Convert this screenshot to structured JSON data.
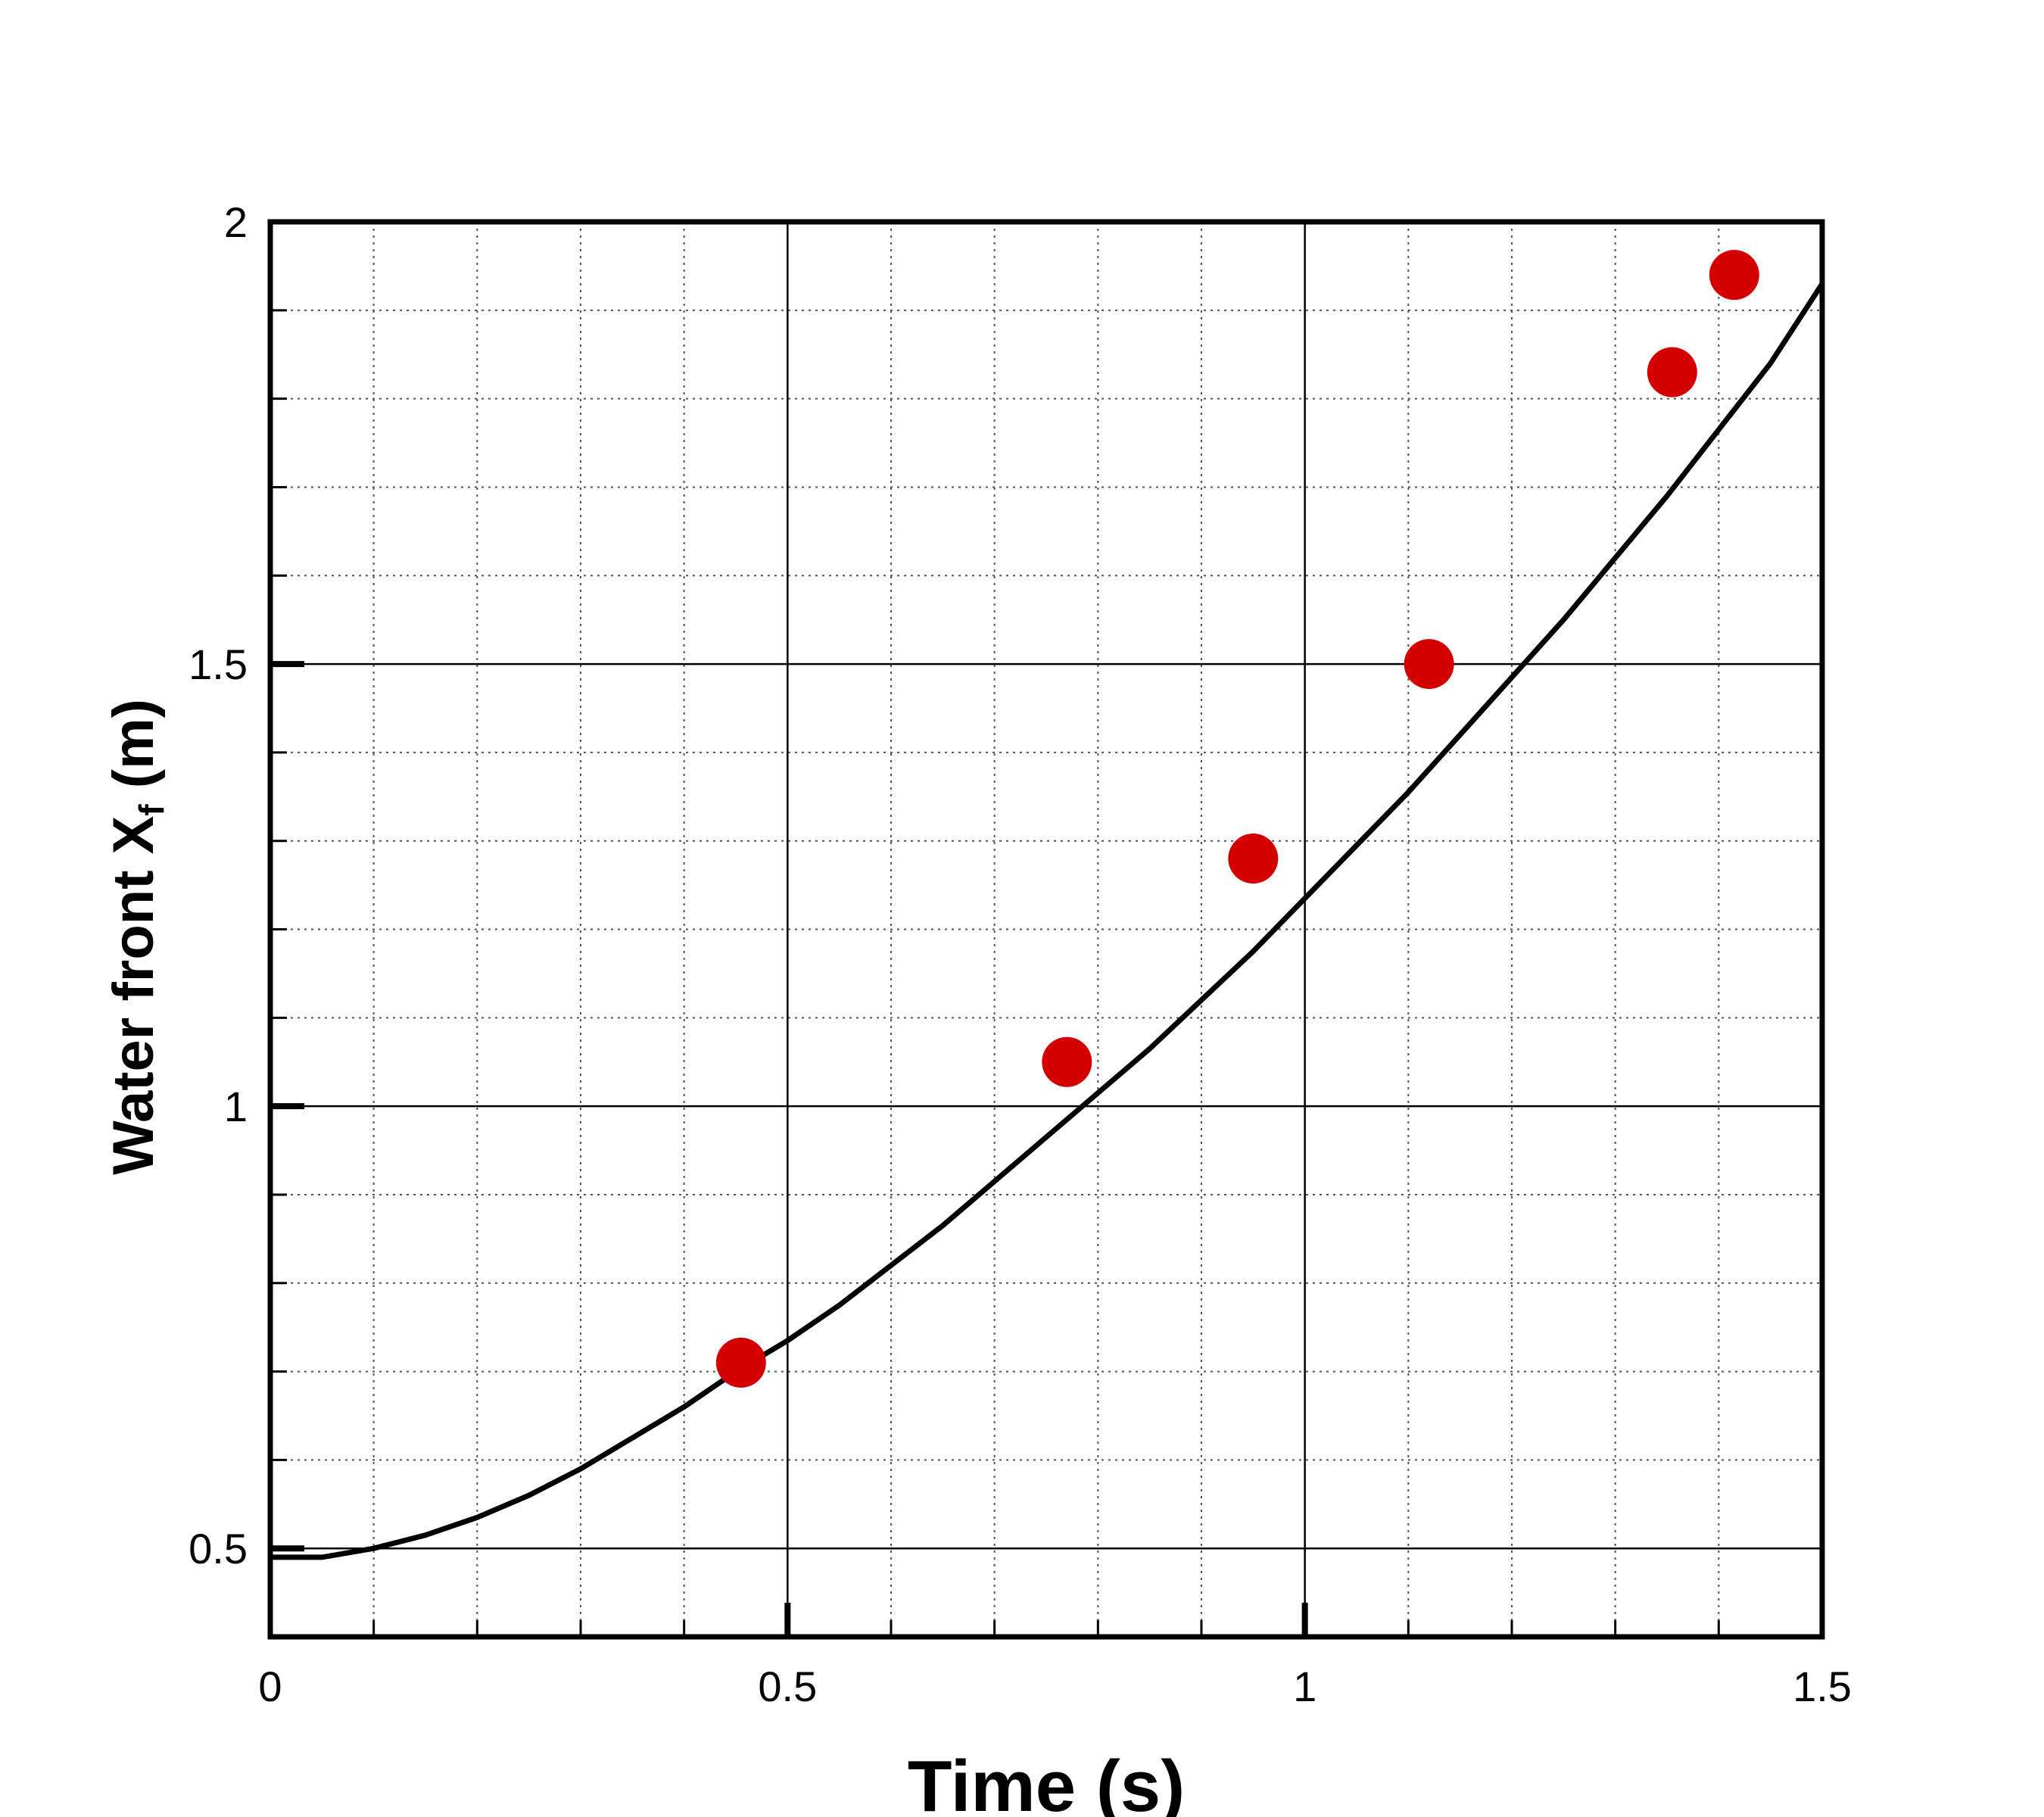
{
  "chart_data": {
    "type": "line",
    "title": "",
    "xlabel": "Time (s)",
    "ylabel": {
      "main": "Water front  X",
      "subscript": "f",
      "unit": " (m)"
    },
    "xlim": [
      0,
      1.5
    ],
    "ylim": [
      0.4,
      2.0
    ],
    "xticks": [
      {
        "value": 0,
        "label": "0"
      },
      {
        "value": 0.5,
        "label": "0.5"
      },
      {
        "value": 1,
        "label": "1"
      },
      {
        "value": 1.5,
        "label": "1.5"
      }
    ],
    "yticks": [
      {
        "value": 0.5,
        "label": "0.5"
      },
      {
        "value": 1,
        "label": "1"
      },
      {
        "value": 1.5,
        "label": "1.5"
      },
      {
        "value": 2,
        "label": "2"
      }
    ],
    "grid": true,
    "series": [
      {
        "kind": "line",
        "color": "#000000",
        "x": [
          0,
          0.05,
          0.1,
          0.15,
          0.2,
          0.25,
          0.3,
          0.35,
          0.4,
          0.45,
          0.5,
          0.55,
          0.6,
          0.65,
          0.7,
          0.75,
          0.8,
          0.85,
          0.9,
          0.95,
          1.0,
          1.05,
          1.1,
          1.15,
          1.2,
          1.25,
          1.3,
          1.35,
          1.4,
          1.45,
          1.5
        ],
        "y": [
          0.49,
          0.49,
          0.5,
          0.515,
          0.535,
          0.56,
          0.59,
          0.625,
          0.66,
          0.7,
          0.735,
          0.775,
          0.82,
          0.865,
          0.915,
          0.965,
          1.015,
          1.065,
          1.12,
          1.175,
          1.235,
          1.295,
          1.355,
          1.42,
          1.485,
          1.55,
          1.62,
          1.69,
          1.765,
          1.84,
          1.93
        ]
      },
      {
        "kind": "scatter",
        "color": "#d40000",
        "x": [
          0.455,
          0.77,
          0.95,
          1.12,
          1.355,
          1.415
        ],
        "y": [
          0.71,
          1.05,
          1.28,
          1.5,
          1.83,
          1.94
        ]
      }
    ]
  }
}
